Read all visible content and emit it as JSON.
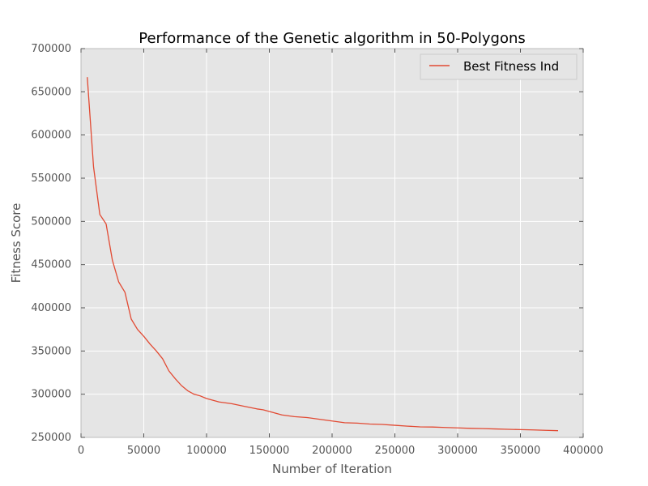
{
  "chart_data": {
    "type": "line",
    "title": "Performance of the Genetic algorithm in 50-Polygons",
    "xlabel": "Number of Iteration",
    "ylabel": "Fitness Score",
    "xlim": [
      0,
      400000
    ],
    "ylim": [
      250000,
      700000
    ],
    "x_ticks": [
      0,
      50000,
      100000,
      150000,
      200000,
      250000,
      300000,
      350000,
      400000
    ],
    "y_ticks": [
      250000,
      300000,
      350000,
      400000,
      450000,
      500000,
      550000,
      600000,
      650000,
      700000
    ],
    "x_tick_labels": [
      "0",
      "50000",
      "100000",
      "150000",
      "200000",
      "250000",
      "300000",
      "350000",
      "400000"
    ],
    "y_tick_labels": [
      "250000",
      "300000",
      "350000",
      "400000",
      "450000",
      "500000",
      "550000",
      "600000",
      "650000",
      "700000"
    ],
    "grid": true,
    "legend_position": "top-right",
    "background_color": "#e5e5e5",
    "series": [
      {
        "name": "Best Fitness Ind",
        "color": "#e24a33",
        "x": [
          5000,
          10000,
          15000,
          20000,
          25000,
          30000,
          35000,
          40000,
          45000,
          50000,
          55000,
          60000,
          65000,
          70000,
          75000,
          80000,
          85000,
          90000,
          95000,
          100000,
          110000,
          120000,
          130000,
          140000,
          145000,
          150000,
          160000,
          170000,
          180000,
          190000,
          200000,
          210000,
          220000,
          230000,
          240000,
          250000,
          260000,
          270000,
          280000,
          290000,
          300000,
          310000,
          320000,
          330000,
          340000,
          350000,
          360000,
          370000,
          380000
        ],
        "values": [
          667000,
          563000,
          508000,
          497000,
          455000,
          430000,
          418000,
          387000,
          375000,
          367000,
          358000,
          350000,
          341000,
          327000,
          318000,
          310000,
          304000,
          300000,
          298000,
          295000,
          291000,
          289000,
          286000,
          283000,
          282000,
          280000,
          276000,
          274000,
          273000,
          271000,
          269000,
          267000,
          266500,
          265500,
          265000,
          264000,
          263000,
          262200,
          262000,
          261500,
          261000,
          260500,
          260200,
          259800,
          259400,
          259000,
          258700,
          258200,
          257800
        ]
      }
    ]
  }
}
